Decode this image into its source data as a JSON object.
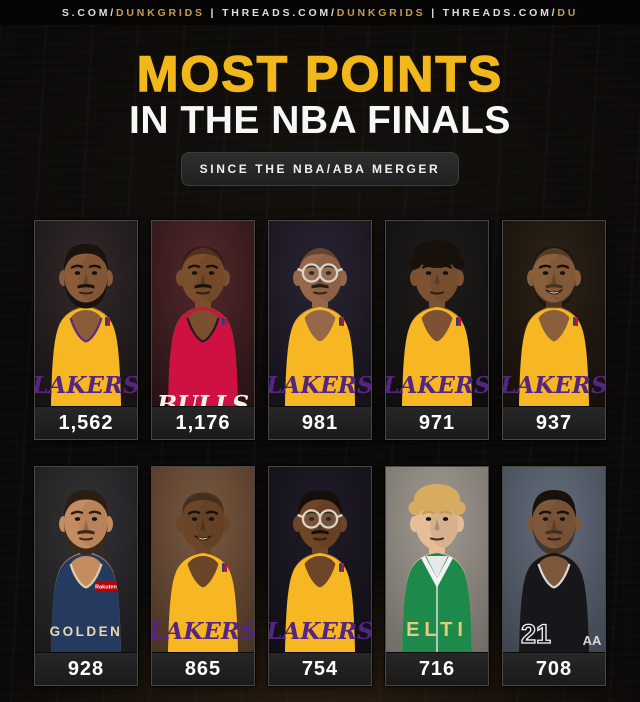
{
  "colors": {
    "accent_gold": "#f2b71b",
    "bar_gold": "#c79b52",
    "page_bg": "#0c0a08",
    "card_panel": "#1f1f1f"
  },
  "top_bar": {
    "runs": [
      {
        "text": "S.COM/",
        "gold": false
      },
      {
        "text": "DUNKGRIDS",
        "gold": true
      },
      {
        "text": " | ",
        "gold": false
      },
      {
        "text": "THREADS.COM/",
        "gold": false
      },
      {
        "text": "DUNKGRIDS",
        "gold": true
      },
      {
        "text": " | ",
        "gold": false
      },
      {
        "text": "THREADS.COM/",
        "gold": false
      },
      {
        "text": "DU",
        "gold": true
      }
    ]
  },
  "header": {
    "title_line1": "MOST POINTS",
    "title_line2": "IN THE NBA FINALS",
    "badge": "SINCE THE NBA/ABA MERGER"
  },
  "cards": [
    {
      "player": "lebron-james",
      "points": "1,562",
      "photo": {
        "bg": "#332a2c",
        "bg2": "#15100f",
        "skin": "#8a5c39",
        "hair": "#1a120d",
        "hairstyle": "short",
        "beard": "full",
        "glasses": false,
        "smile": false,
        "jersey": "#f6b722",
        "jerseyType": "tank",
        "trim": "#552583",
        "mark": "LAKERS",
        "markColor": "#552583",
        "markStyle": "script",
        "logo": true
      }
    },
    {
      "player": "michael-jordan",
      "points": "1,176",
      "photo": {
        "bg": "#54292b",
        "bg2": "#231012",
        "skin": "#7b4e2d",
        "hair": "#1a120d",
        "hairstyle": "bald",
        "beard": "mustache",
        "glasses": false,
        "smile": false,
        "jersey": "#ce1141",
        "jerseyType": "tank",
        "trim": "#1a1a1a",
        "mark": "BULLS",
        "markColor": "#f5f0e8",
        "markStyle": "crop-block",
        "logo": true
      }
    },
    {
      "player": "kareem-abdul-jabbar",
      "points": "981",
      "photo": {
        "bg": "#2a2433",
        "bg2": "#131019",
        "skin": "#96684a",
        "hair": "#241a12",
        "hairstyle": "bald",
        "beard": "mustache",
        "glasses": true,
        "smile": false,
        "jersey": "#f6b722",
        "jerseyType": "tank",
        "mark": "LAKERS",
        "markColor": "#552583",
        "markStyle": "script",
        "logo": true
      }
    },
    {
      "player": "magic-johnson",
      "points": "971",
      "photo": {
        "bg": "#1f1d1b",
        "bg2": "#0e0d0c",
        "skin": "#7d5232",
        "hair": "#17100b",
        "hairstyle": "afro",
        "beard": "none",
        "glasses": false,
        "smile": false,
        "jersey": "#f6b722",
        "jerseyType": "tank",
        "mark": "LAKERS",
        "markColor": "#552583",
        "markStyle": "script",
        "logo": true
      }
    },
    {
      "player": "kobe-bryant",
      "points": "937",
      "photo": {
        "bg": "#2c2217",
        "bg2": "#140e08",
        "skin": "#8a5f3c",
        "hair": "#15100c",
        "hairstyle": "bald",
        "beard": "stubble",
        "glasses": false,
        "smile": true,
        "jersey": "#f6b722",
        "jerseyType": "tank",
        "mark": "LAKERS",
        "markColor": "#552583",
        "markStyle": "script",
        "logo": true
      }
    },
    {
      "player": "stephen-curry",
      "points": "928",
      "photo": {
        "bg": "#333336",
        "bg2": "#18181b",
        "skin": "#c48c61",
        "hair": "#2b1d11",
        "beardColor": "#3c2817",
        "hairstyle": "short",
        "beard": "full",
        "glasses": false,
        "smile": false,
        "jersey": "#26395f",
        "jerseyType": "tank",
        "trim": "#e7d9ae",
        "mark": "GOLDEN",
        "markColor": "#e7d9ae",
        "markStyle": "block",
        "patch": "Rakuten",
        "patchBg": "#bf0000",
        "logo": false
      }
    },
    {
      "player": "shaquille-oneal",
      "points": "865",
      "photo": {
        "bg": "#7a5a42",
        "bg2": "#46301f",
        "skin": "#6b4527",
        "hair": "#17100b",
        "hairstyle": "bald",
        "beard": "none",
        "glasses": false,
        "smile": true,
        "jersey": "#f6b722",
        "jerseyType": "tank",
        "mark": "LAKERS",
        "markColor": "#552583",
        "markStyle": "script",
        "logo": true
      }
    },
    {
      "player": "james-worthy",
      "points": "754",
      "photo": {
        "bg": "#201c28",
        "bg2": "#0f0d14",
        "skin": "#6e4526",
        "hair": "#140f0a",
        "hairstyle": "short",
        "beard": "mustache",
        "glasses": true,
        "smile": false,
        "jersey": "#f6b722",
        "jerseyType": "tank",
        "mark": "LAKERS",
        "markColor": "#552583",
        "markStyle": "script",
        "logo": true
      }
    },
    {
      "player": "larry-bird",
      "points": "716",
      "photo": {
        "bg": "#a09a92",
        "bg2": "#6e6962",
        "skin": "#e5bd96",
        "hair": "#d8ab62",
        "browColor": "#c59a55",
        "hairstyle": "fluffy",
        "beard": "none",
        "glasses": false,
        "smile": false,
        "jersey": "#1d8a4c",
        "jerseyType": "jacket",
        "trim": "#f2f2f2",
        "mark": "ELTI",
        "markColor": "#e3cc7e",
        "markStyle": "block",
        "logo": false
      }
    },
    {
      "player": "tim-duncan",
      "points": "708",
      "photo": {
        "bg": "#646d7a",
        "bg2": "#3c434e",
        "skin": "#7d583a",
        "hair": "#17100b",
        "hairstyle": "short",
        "beard": "stubble",
        "glasses": false,
        "smile": false,
        "jersey": "#17171b",
        "jerseyType": "tank",
        "trim": "#e8e8e8",
        "mark": "21",
        "mark2": "AA",
        "markColor": "#f2f2f2",
        "markStyle": "number",
        "logo": false
      }
    }
  ]
}
